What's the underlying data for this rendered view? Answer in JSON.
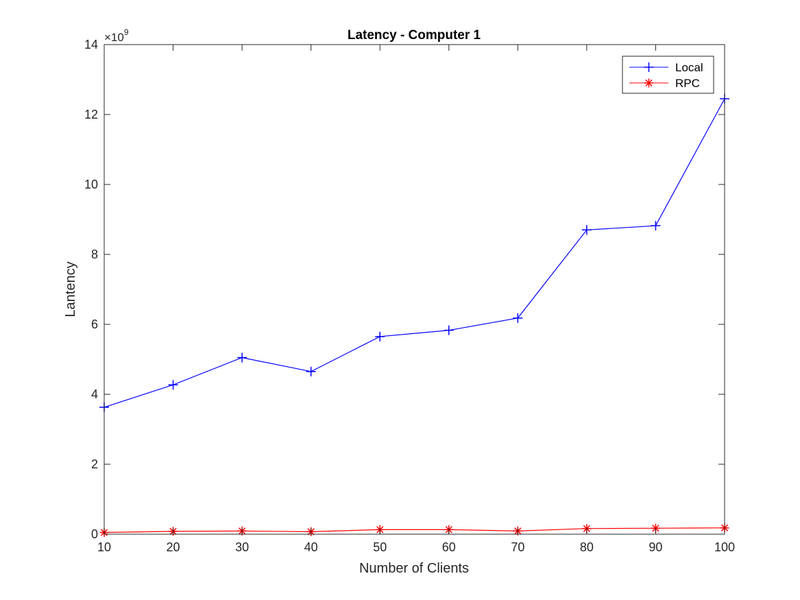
{
  "chart_data": {
    "type": "line",
    "title": "Latency - Computer 1",
    "xlabel": "Number of Clients",
    "ylabel": "Lantency",
    "x": [
      10,
      20,
      30,
      40,
      50,
      60,
      70,
      80,
      90,
      100
    ],
    "xlim": [
      10,
      100
    ],
    "ylim": [
      0,
      14
    ],
    "xticks": [
      "10",
      "20",
      "30",
      "40",
      "50",
      "60",
      "70",
      "80",
      "90",
      "100"
    ],
    "yticks": [
      "0",
      "2",
      "4",
      "6",
      "8",
      "10",
      "12",
      "14"
    ],
    "y_exponent": "×10",
    "y_exponent_power": "9",
    "grid": false,
    "legend_position": "top-right",
    "series": [
      {
        "name": "Local",
        "color": "#0000ff",
        "marker": "plus",
        "values": [
          3.63,
          4.27,
          5.05,
          4.65,
          5.65,
          5.83,
          6.18,
          8.7,
          8.82,
          12.45
        ]
      },
      {
        "name": "RPC",
        "color": "#ff0000",
        "marker": "asterisk",
        "values": [
          0.05,
          0.08,
          0.09,
          0.07,
          0.13,
          0.13,
          0.09,
          0.16,
          0.17,
          0.18
        ]
      }
    ]
  }
}
